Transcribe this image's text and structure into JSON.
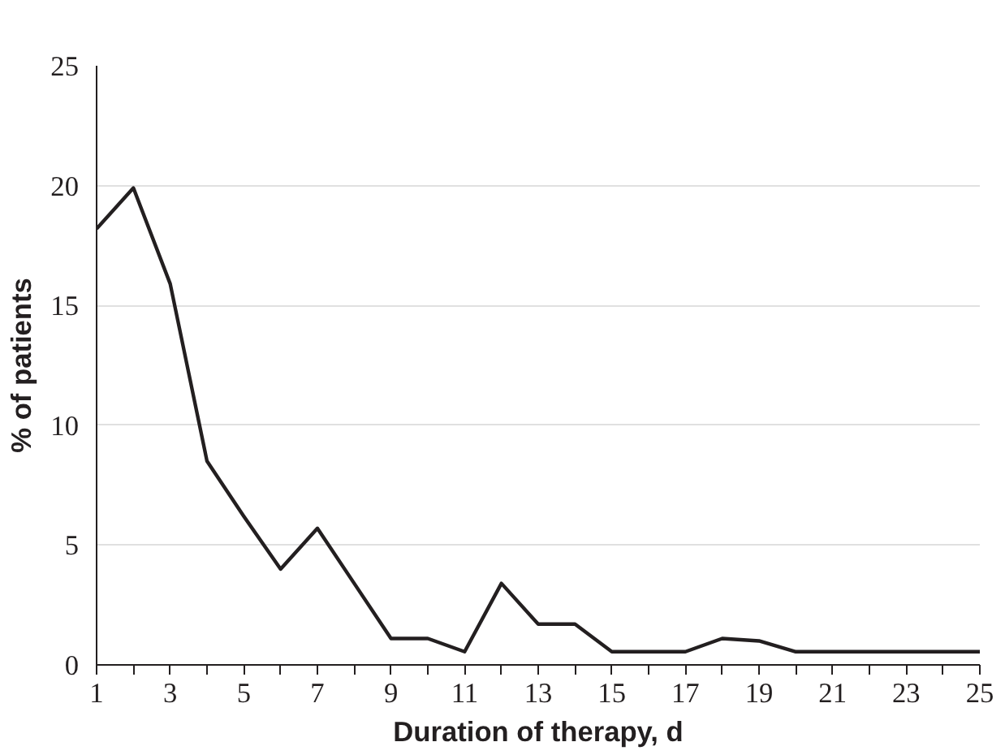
{
  "chart_data": {
    "type": "line",
    "xlabel": "Duration of therapy, d",
    "ylabel": "% of patients",
    "x": [
      1,
      2,
      3,
      4,
      5,
      6,
      7,
      8,
      9,
      10,
      11,
      12,
      13,
      14,
      15,
      16,
      17,
      18,
      19,
      20,
      21,
      22,
      23,
      24,
      25
    ],
    "series": [
      {
        "color": "#231f20",
        "values": [
          18.2,
          19.9,
          15.9,
          8.5,
          6.2,
          4.0,
          5.7,
          3.4,
          1.1,
          1.1,
          0.55,
          3.4,
          1.7,
          1.7,
          0.55,
          0.55,
          0.55,
          1.1,
          1.0,
          0.55,
          0.55,
          0.55,
          0.55,
          0.55,
          0.55
        ]
      }
    ],
    "xlim": [
      1,
      25
    ],
    "ylim": [
      0,
      25
    ],
    "xticks": [
      1,
      {
        "value": 2,
        "label": null
      },
      3,
      {
        "value": 4,
        "label": null
      },
      5,
      {
        "value": 6,
        "label": null
      },
      7,
      {
        "value": 8,
        "label": null
      },
      9,
      {
        "value": 10,
        "label": null
      },
      11,
      {
        "value": 12,
        "label": null
      },
      13,
      {
        "value": 14,
        "label": null
      },
      15,
      {
        "value": 16,
        "label": null
      },
      17,
      {
        "value": 18,
        "label": null
      },
      19,
      {
        "value": 20,
        "label": null
      },
      21,
      {
        "value": 22,
        "label": null
      },
      23,
      {
        "value": 24,
        "label": null
      },
      25
    ],
    "yticks": [
      0,
      5,
      10,
      15,
      20,
      25
    ],
    "grid": "y",
    "marker": "none",
    "line_style": "solid"
  }
}
